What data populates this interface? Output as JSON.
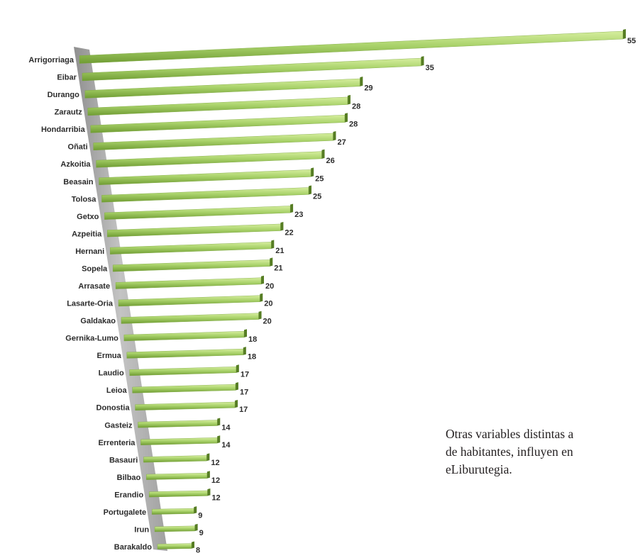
{
  "colors": {
    "bar_top": "#d6ee9e",
    "bar_mid": "#a9d26a",
    "bar_bottom": "#6f9c33",
    "bar_end": "#567d24",
    "wall": "#b5b5b5",
    "text": "#2b2b2b"
  },
  "chart_data": {
    "type": "bar",
    "orientation": "horizontal",
    "style": "3d",
    "grid": false,
    "legend": "none",
    "xlim": [
      0,
      55
    ],
    "categories": [
      "Arrigorriaga",
      "Eibar",
      "Durango",
      "Zarautz",
      "Hondarribia",
      "Oñati",
      "Azkoitia",
      "Beasain",
      "Tolosa",
      "Getxo",
      "Azpeitia",
      "Hernani",
      "Sopela",
      "Arrasate",
      "Lasarte-Oria",
      "Galdakao",
      "Gernika-Lumo",
      "Ermua",
      "Laudio",
      "Leioa",
      "Donostia",
      "Gasteiz",
      "Errenteria",
      "Basauri",
      "Bilbao",
      "Erandio",
      "Portugalete",
      "Irun",
      "Barakaldo"
    ],
    "values": [
      55,
      35,
      29,
      28,
      28,
      27,
      26,
      25,
      25,
      23,
      22,
      21,
      21,
      20,
      20,
      20,
      18,
      18,
      17,
      17,
      17,
      14,
      14,
      12,
      12,
      12,
      9,
      9,
      8
    ]
  },
  "side_text": {
    "line1": "Otras variables distintas a",
    "line2": "de habitantes, influyen en",
    "line3": "eLiburutegia."
  }
}
